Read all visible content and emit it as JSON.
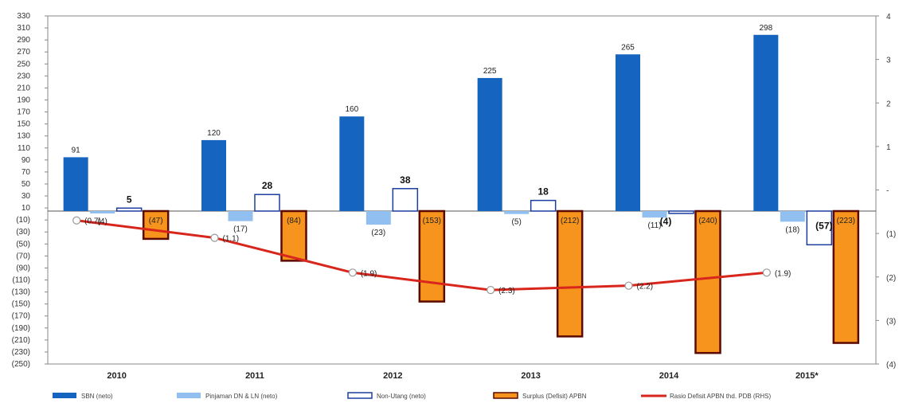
{
  "chart_data": {
    "type": "bar",
    "categories": [
      "2010",
      "2011",
      "2012",
      "2013",
      "2014",
      "2015*"
    ],
    "series": [
      {
        "name": "SBN (neto)",
        "kind": "bar",
        "color": "#1565c0",
        "values": [
          91,
          120,
          160,
          225,
          265,
          298
        ],
        "labels": [
          "91",
          "120",
          "160",
          "225",
          "265",
          "298"
        ]
      },
      {
        "name": "Pinjaman DN & LN (neto)",
        "kind": "bar",
        "color": "#90bff0",
        "values": [
          -4,
          -17,
          -23,
          -5,
          -11,
          -18
        ],
        "labels": [
          "(4)",
          "(17)",
          "(23)",
          "(5)",
          "(11)",
          "(18)"
        ]
      },
      {
        "name": "Non-Utang (neto)",
        "kind": "bar",
        "color": "#ffffff",
        "stroke": "#1a3d9e",
        "values": [
          5,
          28,
          38,
          18,
          -4,
          -57
        ],
        "labels": [
          "5",
          "28",
          "38",
          "18",
          "(4)",
          "(57)"
        ]
      },
      {
        "name": "Surplus (Defisit) APBN",
        "kind": "bar",
        "color": "#f7941d",
        "stroke": "#5c0a00",
        "values": [
          -47,
          -84,
          -153,
          -212,
          -240,
          -223
        ],
        "labels": [
          "(47)",
          "(84)",
          "(153)",
          "(212)",
          "(240)",
          "(223)"
        ]
      },
      {
        "name": "Rasio Defisit APBN thd. PDB (RHS)",
        "kind": "line",
        "axis": "right",
        "color": "#d9261c",
        "values": [
          -0.7,
          -1.1,
          -1.9,
          -2.3,
          -2.2,
          -1.9
        ],
        "labels": [
          "(0.7)",
          "(1.1)",
          "(1.9)",
          "(2.3)",
          "(2.2)",
          "(1.9)"
        ]
      }
    ],
    "y_left": {
      "min": -250,
      "max": 330,
      "ticks": [
        "330",
        "310",
        "290",
        "270",
        "250",
        "230",
        "210",
        "190",
        "170",
        "150",
        "130",
        "110",
        "90",
        "70",
        "50",
        "30",
        "10",
        "(10)",
        "(30)",
        "(50)",
        "(70)",
        "(90)",
        "(110)",
        "(130)",
        "(150)",
        "(170)",
        "(190)",
        "(210)",
        "(230)",
        "(250)"
      ]
    },
    "y_right": {
      "min": -4,
      "max": 4,
      "ticks": [
        "4",
        "3",
        "2",
        "1",
        "-",
        "(1)",
        "(2)",
        "(3)",
        "(4)"
      ]
    },
    "legend_position": "bottom",
    "grid": false
  }
}
